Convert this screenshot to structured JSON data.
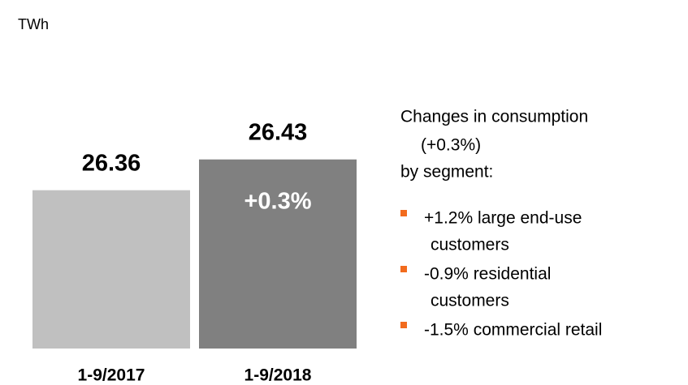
{
  "chart_data": {
    "type": "bar",
    "unit_label": "TWh",
    "categories": [
      "1-9/2017",
      "1-9/2018"
    ],
    "values": [
      26.36,
      26.43
    ],
    "colors": [
      "#c0c0c0",
      "#808080"
    ],
    "ylim": [
      26.0,
      26.47
    ],
    "bar_annotation": "+0.3%",
    "side_text": {
      "heading": [
        "Changes in consumption",
        "(+0.3%)",
        "by segment:"
      ],
      "bullet_color": "#f26b1d",
      "items": [
        [
          "+1.2% large end-use",
          "customers"
        ],
        [
          "-0.9% residential",
          "customers"
        ],
        [
          "-1.5% commercial retail"
        ]
      ]
    }
  }
}
